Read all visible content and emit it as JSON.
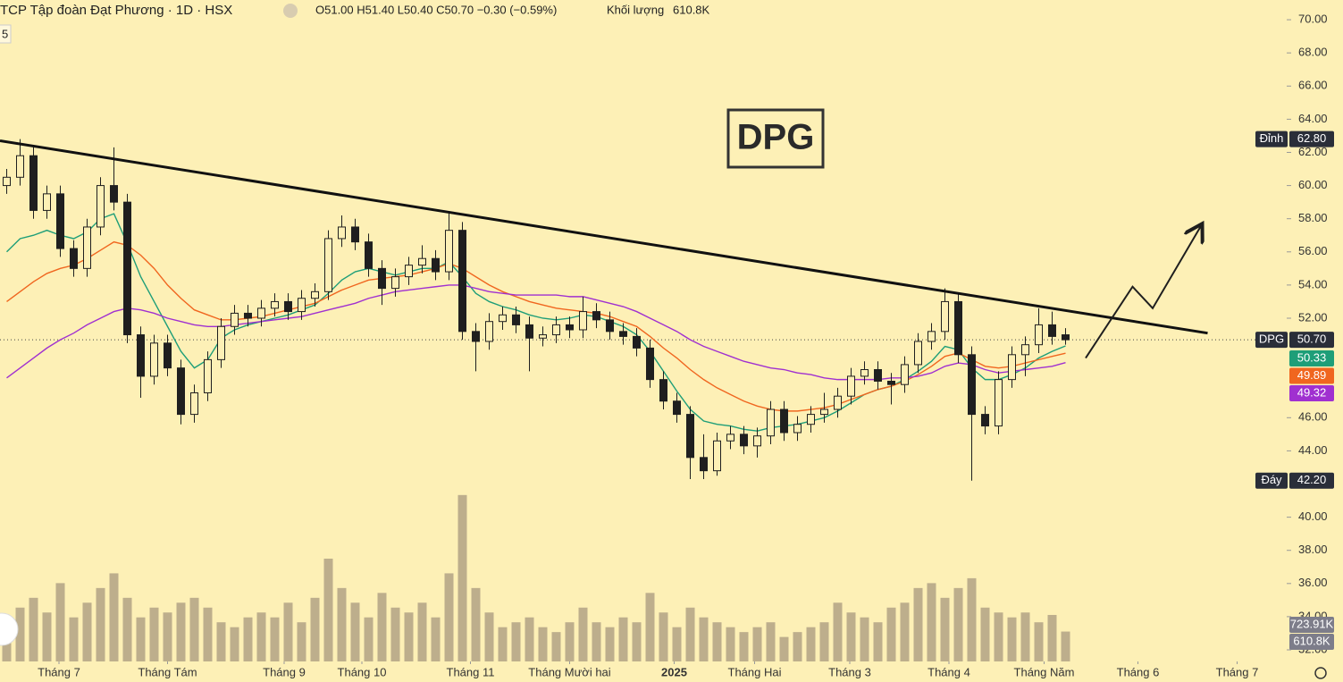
{
  "header": {
    "title": "TCP Tập đoàn Đạt Phương · 1D · HSX",
    "ohlc_label": "O51.00 H51.40 L50.40 C50.70 −0.30 (−0.59%)",
    "volume_label": "Khối lượng",
    "corner_label": "5"
  },
  "chart_data": {
    "type": "candlestick",
    "annotation": "DPG",
    "candles": [
      [
        60.0,
        61.0,
        59.5,
        60.5
      ],
      [
        60.5,
        62.8,
        60.0,
        61.8
      ],
      [
        61.8,
        62.3,
        58.0,
        58.5
      ],
      [
        58.5,
        60.0,
        58.0,
        59.5
      ],
      [
        59.5,
        60.0,
        55.7,
        56.2
      ],
      [
        56.2,
        56.7,
        54.5,
        55.0
      ],
      [
        55.0,
        58.0,
        54.5,
        57.5
      ],
      [
        57.5,
        60.5,
        57.0,
        60.0
      ],
      [
        60.0,
        62.3,
        58.5,
        59.0
      ],
      [
        59.0,
        59.5,
        50.5,
        51.0
      ],
      [
        51.0,
        51.5,
        47.2,
        48.5
      ],
      [
        48.5,
        51.0,
        48.0,
        50.5
      ],
      [
        50.5,
        51.0,
        48.5,
        49.0
      ],
      [
        49.0,
        49.5,
        45.6,
        46.2
      ],
      [
        46.2,
        48.0,
        45.7,
        47.5
      ],
      [
        47.5,
        50.0,
        47.0,
        49.5
      ],
      [
        49.5,
        52.0,
        49.0,
        51.5
      ],
      [
        51.5,
        52.8,
        51.0,
        52.3
      ],
      [
        52.3,
        52.8,
        51.5,
        52.0
      ],
      [
        52.0,
        53.1,
        51.5,
        52.6
      ],
      [
        52.6,
        53.5,
        52.1,
        53.0
      ],
      [
        53.0,
        53.5,
        51.9,
        52.4
      ],
      [
        52.4,
        53.7,
        51.9,
        53.2
      ],
      [
        53.2,
        54.1,
        52.7,
        53.6
      ],
      [
        53.6,
        57.3,
        53.1,
        56.8
      ],
      [
        56.8,
        58.2,
        56.3,
        57.5
      ],
      [
        57.5,
        58.0,
        56.1,
        56.6
      ],
      [
        56.6,
        57.1,
        54.5,
        55.0
      ],
      [
        55.0,
        55.5,
        52.8,
        53.8
      ],
      [
        53.8,
        55.0,
        53.3,
        54.5
      ],
      [
        54.5,
        55.7,
        54.0,
        55.2
      ],
      [
        55.2,
        56.4,
        54.7,
        55.6
      ],
      [
        55.6,
        56.1,
        54.3,
        54.8
      ],
      [
        54.8,
        58.4,
        54.3,
        57.3
      ],
      [
        57.3,
        57.8,
        50.7,
        51.2
      ],
      [
        51.2,
        51.7,
        48.8,
        50.6
      ],
      [
        50.6,
        52.3,
        50.1,
        51.8
      ],
      [
        51.8,
        52.7,
        51.3,
        52.2
      ],
      [
        52.2,
        52.7,
        51.1,
        51.6
      ],
      [
        51.6,
        52.1,
        48.8,
        50.8
      ],
      [
        50.8,
        51.5,
        50.3,
        51.0
      ],
      [
        51.0,
        52.1,
        50.5,
        51.6
      ],
      [
        51.6,
        52.1,
        50.8,
        51.3
      ],
      [
        51.3,
        53.3,
        50.8,
        52.4
      ],
      [
        52.4,
        52.9,
        51.4,
        51.9
      ],
      [
        51.9,
        52.4,
        50.7,
        51.2
      ],
      [
        51.2,
        51.7,
        50.4,
        50.9
      ],
      [
        50.9,
        51.4,
        49.7,
        50.2
      ],
      [
        50.2,
        50.7,
        47.8,
        48.3
      ],
      [
        48.3,
        48.8,
        46.5,
        47.0
      ],
      [
        47.0,
        47.5,
        45.7,
        46.2
      ],
      [
        46.2,
        46.7,
        42.3,
        43.6
      ],
      [
        43.6,
        45.0,
        42.3,
        42.8
      ],
      [
        42.8,
        45.1,
        42.5,
        44.6
      ],
      [
        44.6,
        45.5,
        44.1,
        45.0
      ],
      [
        45.0,
        45.5,
        43.8,
        44.3
      ],
      [
        44.3,
        45.4,
        43.6,
        44.9
      ],
      [
        44.9,
        47.0,
        44.4,
        46.5
      ],
      [
        46.5,
        47.0,
        44.6,
        45.1
      ],
      [
        45.1,
        46.1,
        44.6,
        45.6
      ],
      [
        45.6,
        46.7,
        45.1,
        46.2
      ],
      [
        46.2,
        47.5,
        45.7,
        46.5
      ],
      [
        46.5,
        47.8,
        46.0,
        47.3
      ],
      [
        47.3,
        49.0,
        46.8,
        48.5
      ],
      [
        48.5,
        49.4,
        48.0,
        48.9
      ],
      [
        48.9,
        49.4,
        47.7,
        48.2
      ],
      [
        48.2,
        48.7,
        46.8,
        48.0
      ],
      [
        48.0,
        49.7,
        47.5,
        49.2
      ],
      [
        49.2,
        51.1,
        48.7,
        50.6
      ],
      [
        50.6,
        51.7,
        50.1,
        51.2
      ],
      [
        51.2,
        53.8,
        50.7,
        53.0
      ],
      [
        53.0,
        53.5,
        49.3,
        49.8
      ],
      [
        49.8,
        50.3,
        42.2,
        46.2
      ],
      [
        46.2,
        46.7,
        45.0,
        45.5
      ],
      [
        45.5,
        48.8,
        45.0,
        48.3
      ],
      [
        48.3,
        50.3,
        47.8,
        49.8
      ],
      [
        49.8,
        50.9,
        48.5,
        50.4
      ],
      [
        50.4,
        52.6,
        49.9,
        51.6
      ],
      [
        51.6,
        52.4,
        50.4,
        50.9
      ],
      [
        51.0,
        51.4,
        50.4,
        50.7
      ]
    ],
    "up_color": "#fdf0b6",
    "down_color": "#1f1f1f",
    "wick_color": "#1f1f1f",
    "close_label": {
      "name": "DPG",
      "label": "50.70"
    },
    "high_marker": {
      "name": "Đỉnh",
      "value": 62.8,
      "label": "62.80"
    },
    "low_marker": {
      "name": "Đáy",
      "value": 42.2,
      "label": "42.20"
    },
    "series": [
      {
        "color": "#1e9e78",
        "last_label": "50.33",
        "values": [
          56.0,
          56.8,
          57.0,
          57.3,
          57.0,
          56.8,
          57.2,
          58.0,
          58.3,
          56.5,
          54.5,
          53.0,
          51.5,
          50.0,
          49.0,
          49.5,
          50.8,
          51.3,
          51.6,
          51.8,
          52.0,
          52.2,
          52.5,
          52.8,
          53.5,
          54.3,
          54.8,
          55.0,
          54.8,
          54.6,
          54.8,
          55.0,
          55.0,
          55.4,
          54.5,
          53.5,
          53.0,
          52.7,
          52.5,
          52.2,
          52.0,
          51.9,
          52.0,
          52.2,
          52.1,
          51.8,
          51.5,
          51.0,
          50.0,
          48.8,
          47.6,
          46.5,
          45.8,
          45.6,
          45.5,
          45.3,
          45.2,
          45.4,
          45.5,
          45.6,
          45.8,
          46.0,
          46.4,
          46.9,
          47.4,
          47.7,
          47.9,
          48.3,
          48.8,
          49.4,
          50.3,
          50.1,
          49.0,
          48.3,
          48.3,
          48.6,
          49.0,
          49.6,
          50.0,
          50.33
        ]
      },
      {
        "color": "#f0661f",
        "last_label": "49.89",
        "values": [
          53.0,
          53.6,
          54.2,
          54.7,
          55.0,
          55.2,
          55.6,
          56.1,
          56.6,
          56.4,
          55.8,
          55.0,
          54.0,
          53.2,
          52.5,
          52.2,
          51.9,
          51.9,
          52.0,
          52.1,
          52.3,
          52.5,
          52.7,
          52.9,
          53.3,
          53.7,
          54.0,
          54.3,
          54.4,
          54.5,
          54.6,
          54.8,
          55.0,
          55.3,
          55.0,
          54.5,
          54.0,
          53.6,
          53.3,
          53.0,
          52.8,
          52.6,
          52.5,
          52.4,
          52.3,
          52.1,
          51.8,
          51.5,
          50.9,
          50.2,
          49.6,
          48.9,
          48.3,
          47.8,
          47.4,
          47.0,
          46.7,
          46.5,
          46.4,
          46.4,
          46.5,
          46.6,
          46.8,
          47.1,
          47.4,
          47.7,
          47.9,
          48.2,
          48.6,
          49.1,
          49.7,
          49.9,
          49.5,
          49.1,
          49.0,
          49.1,
          49.3,
          49.5,
          49.7,
          49.89
        ]
      },
      {
        "color": "#a030d0",
        "last_label": "49.32",
        "values": [
          48.4,
          49.0,
          49.6,
          50.2,
          50.7,
          51.1,
          51.6,
          52.0,
          52.4,
          52.6,
          52.5,
          52.3,
          52.0,
          51.8,
          51.6,
          51.5,
          51.5,
          51.6,
          51.7,
          51.8,
          51.9,
          52.0,
          52.1,
          52.3,
          52.5,
          52.7,
          52.9,
          53.2,
          53.4,
          53.6,
          53.7,
          53.8,
          53.9,
          54.0,
          54.0,
          53.8,
          53.6,
          53.5,
          53.4,
          53.4,
          53.4,
          53.4,
          53.3,
          53.3,
          53.1,
          52.9,
          52.7,
          52.4,
          52.0,
          51.6,
          51.2,
          50.7,
          50.3,
          50.0,
          49.7,
          49.4,
          49.2,
          49.0,
          48.9,
          48.7,
          48.6,
          48.4,
          48.3,
          48.3,
          48.3,
          48.3,
          48.4,
          48.4,
          48.5,
          48.7,
          49.1,
          49.3,
          49.2,
          48.9,
          48.7,
          48.8,
          48.9,
          49.0,
          49.1,
          49.32
        ]
      }
    ],
    "volume": [
      900000,
      1100000,
      1300000,
      1000000,
      1600000,
      900000,
      1200000,
      1500000,
      1800000,
      1300000,
      900000,
      1100000,
      1000000,
      1200000,
      1300000,
      1100000,
      800000,
      700000,
      900000,
      1000000,
      900000,
      1200000,
      800000,
      1300000,
      2100000,
      1500000,
      1200000,
      900000,
      1400000,
      1100000,
      1000000,
      1200000,
      900000,
      1800000,
      3400000,
      1500000,
      1000000,
      700000,
      800000,
      900000,
      700000,
      600000,
      800000,
      1100000,
      800000,
      700000,
      900000,
      800000,
      1400000,
      1000000,
      700000,
      1100000,
      900000,
      800000,
      700000,
      600000,
      700000,
      800000,
      500000,
      600000,
      700000,
      800000,
      1200000,
      1000000,
      900000,
      800000,
      1100000,
      1200000,
      1500000,
      1600000,
      1300000,
      1500000,
      1700000,
      1100000,
      1000000,
      900000,
      1000000,
      800000,
      950000,
      610800
    ],
    "volume_color": "#bdae8c",
    "vlim": [
      0,
      4200000
    ],
    "volume_last_label": "610.8K",
    "volume_ma": {
      "value": 723910,
      "label": "723.91K"
    },
    "trendline": {
      "x": [
        -0.5,
        89.6
      ],
      "y": [
        62.7,
        51.1
      ]
    },
    "projection": {
      "x": [
        80.5,
        84.0,
        85.5,
        89.2
      ],
      "y": [
        49.6,
        53.9,
        52.6,
        57.7
      ]
    },
    "xlim": [
      -0.5,
      95.5
    ],
    "ylim": [
      31.3,
      71.19
    ],
    "xticks": [
      {
        "value": 3.9,
        "label": "Tháng 7"
      },
      {
        "value": 12.0,
        "label": "Tháng Tám"
      },
      {
        "value": 20.7,
        "label": "Tháng 9"
      },
      {
        "value": 26.5,
        "label": "Tháng 10"
      },
      {
        "value": 34.6,
        "label": "Tháng 11"
      },
      {
        "value": 42.0,
        "label": "Tháng Mười hai"
      },
      {
        "value": 49.8,
        "label": "2025"
      },
      {
        "value": 55.8,
        "label": "Tháng Hai"
      },
      {
        "value": 62.9,
        "label": "Tháng 3"
      },
      {
        "value": 70.3,
        "label": "Tháng 4"
      },
      {
        "value": 77.4,
        "label": "Tháng Năm"
      },
      {
        "value": 84.4,
        "label": "Tháng 6"
      },
      {
        "value": 91.8,
        "label": "Tháng 7"
      }
    ],
    "yticks": [
      {
        "value": 32,
        "label": "32.00"
      },
      {
        "value": 34,
        "label": "34.00"
      },
      {
        "value": 36,
        "label": "36.00"
      },
      {
        "value": 38,
        "label": "38.00"
      },
      {
        "value": 40,
        "label": "40.00"
      },
      {
        "value": 44,
        "label": "44.00"
      },
      {
        "value": 46,
        "label": "46.00"
      },
      {
        "value": 52,
        "label": "52.00"
      },
      {
        "value": 54,
        "label": "54.00"
      },
      {
        "value": 56,
        "label": "56.00"
      },
      {
        "value": 58,
        "label": "58.00"
      },
      {
        "value": 60,
        "label": "60.00"
      },
      {
        "value": 62,
        "label": "62.00"
      },
      {
        "value": 64,
        "label": "64.00"
      },
      {
        "value": 66,
        "label": "66.00"
      },
      {
        "value": 68,
        "label": "68.00"
      },
      {
        "value": 70,
        "label": "70.00"
      }
    ]
  }
}
